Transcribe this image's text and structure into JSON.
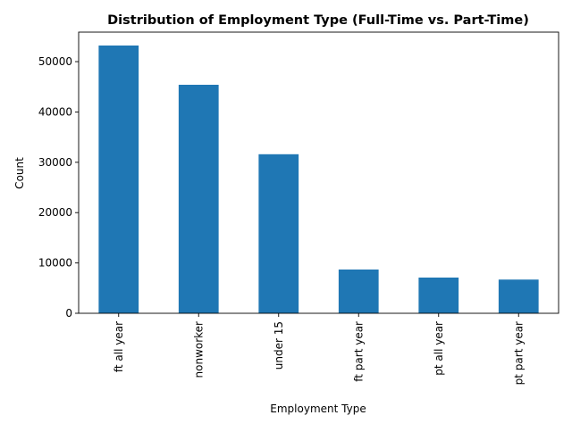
{
  "chart_data": {
    "type": "bar",
    "title": "Distribution of Employment Type (Full-Time vs. Part-Time)",
    "xlabel": "Employment Type",
    "ylabel": "Count",
    "categories": [
      "ft all year",
      "nonworker",
      "under 15",
      "ft part year",
      "pt all year",
      "pt part year"
    ],
    "values": [
      53200,
      45400,
      31600,
      8700,
      7100,
      6700
    ],
    "ylim": [
      0,
      55860
    ],
    "yticks": [
      0,
      10000,
      20000,
      30000,
      40000,
      50000
    ],
    "ytick_labels": [
      "0",
      "10000",
      "20000",
      "30000",
      "40000",
      "50000"
    ],
    "bar_color": "#1f77b4",
    "grid": false,
    "legend": false
  }
}
